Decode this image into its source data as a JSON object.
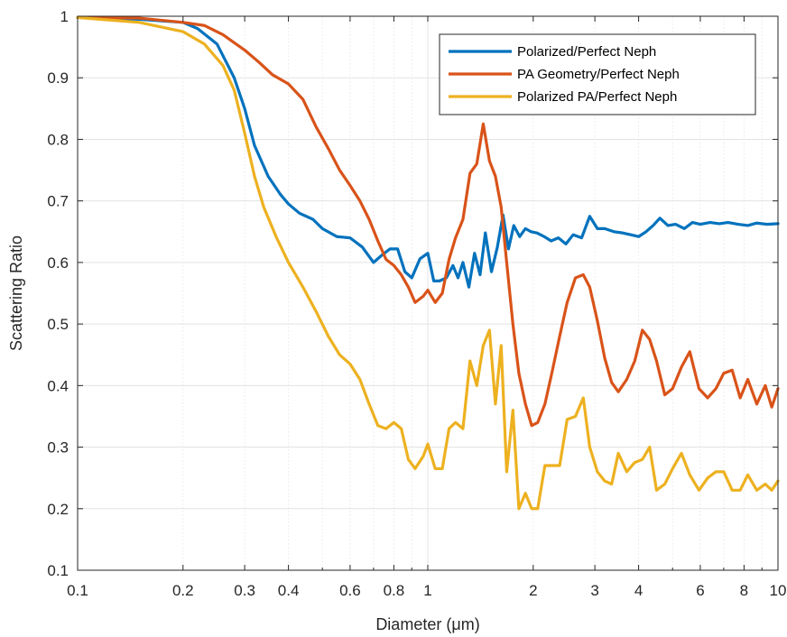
{
  "chart_data": {
    "type": "line",
    "title": "",
    "xlabel": "Diameter (μm)",
    "ylabel": "Scattering Ratio",
    "xscale": "log",
    "xlim": [
      0.1,
      10
    ],
    "ylim": [
      0.1,
      1
    ],
    "grid": true,
    "legend_position": "top-right",
    "x_ticks": [
      0.1,
      0.2,
      0.3,
      0.4,
      0.6,
      0.8,
      1,
      2,
      3,
      4,
      6,
      8,
      10
    ],
    "x_tick_labels": [
      "0.1",
      "0.2",
      "0.3",
      "0.4",
      "0.6",
      "0.8",
      "1",
      "2",
      "3",
      "4",
      "6",
      "8",
      "10"
    ],
    "y_ticks": [
      0.1,
      0.2,
      0.3,
      0.4,
      0.5,
      0.6,
      0.7,
      0.8,
      0.9,
      1
    ],
    "y_tick_labels": [
      "0.1",
      "0.2",
      "0.3",
      "0.4",
      "0.5",
      "0.6",
      "0.7",
      "0.8",
      "0.9",
      "1"
    ],
    "series": [
      {
        "name": "Polarized/Perfect Neph",
        "color": "#0072BD",
        "x": [
          0.1,
          0.15,
          0.2,
          0.22,
          0.25,
          0.28,
          0.3,
          0.32,
          0.35,
          0.38,
          0.4,
          0.43,
          0.47,
          0.5,
          0.55,
          0.6,
          0.65,
          0.7,
          0.74,
          0.78,
          0.82,
          0.86,
          0.9,
          0.95,
          1.0,
          1.04,
          1.08,
          1.13,
          1.18,
          1.22,
          1.26,
          1.31,
          1.36,
          1.41,
          1.46,
          1.52,
          1.58,
          1.64,
          1.7,
          1.76,
          1.83,
          1.9,
          1.97,
          2.05,
          2.15,
          2.25,
          2.36,
          2.48,
          2.6,
          2.75,
          2.9,
          3.05,
          3.2,
          3.4,
          3.6,
          3.8,
          4.0,
          4.2,
          4.4,
          4.6,
          4.85,
          5.1,
          5.4,
          5.7,
          6.0,
          6.4,
          6.8,
          7.2,
          7.7,
          8.2,
          8.7,
          9.3,
          10.0
        ],
        "values": [
          0.998,
          0.995,
          0.99,
          0.98,
          0.955,
          0.9,
          0.85,
          0.79,
          0.74,
          0.71,
          0.695,
          0.68,
          0.67,
          0.655,
          0.642,
          0.64,
          0.625,
          0.6,
          0.612,
          0.622,
          0.622,
          0.585,
          0.575,
          0.606,
          0.615,
          0.57,
          0.57,
          0.575,
          0.595,
          0.575,
          0.6,
          0.56,
          0.615,
          0.58,
          0.648,
          0.585,
          0.625,
          0.677,
          0.622,
          0.66,
          0.642,
          0.655,
          0.65,
          0.648,
          0.642,
          0.635,
          0.64,
          0.63,
          0.645,
          0.64,
          0.675,
          0.655,
          0.655,
          0.65,
          0.648,
          0.645,
          0.642,
          0.65,
          0.66,
          0.672,
          0.66,
          0.662,
          0.655,
          0.665,
          0.662,
          0.665,
          0.663,
          0.665,
          0.662,
          0.66,
          0.664,
          0.662,
          0.663
        ]
      },
      {
        "name": "PA Geometry/Perfect Neph",
        "color": "#D95319",
        "x": [
          0.1,
          0.15,
          0.2,
          0.23,
          0.26,
          0.3,
          0.33,
          0.36,
          0.4,
          0.44,
          0.48,
          0.52,
          0.56,
          0.6,
          0.64,
          0.68,
          0.72,
          0.76,
          0.8,
          0.84,
          0.88,
          0.92,
          0.97,
          1.0,
          1.05,
          1.1,
          1.15,
          1.2,
          1.26,
          1.32,
          1.38,
          1.44,
          1.5,
          1.56,
          1.62,
          1.68,
          1.75,
          1.82,
          1.9,
          1.98,
          2.06,
          2.16,
          2.26,
          2.38,
          2.5,
          2.64,
          2.78,
          2.9,
          3.05,
          3.2,
          3.35,
          3.5,
          3.7,
          3.9,
          4.1,
          4.3,
          4.5,
          4.75,
          5.0,
          5.3,
          5.6,
          5.95,
          6.3,
          6.65,
          7.0,
          7.4,
          7.8,
          8.2,
          8.7,
          9.2,
          9.6,
          10.0
        ],
        "values": [
          0.998,
          0.997,
          0.99,
          0.985,
          0.97,
          0.945,
          0.925,
          0.905,
          0.89,
          0.865,
          0.82,
          0.785,
          0.75,
          0.725,
          0.7,
          0.67,
          0.635,
          0.605,
          0.595,
          0.58,
          0.56,
          0.535,
          0.545,
          0.555,
          0.535,
          0.55,
          0.605,
          0.64,
          0.67,
          0.745,
          0.76,
          0.825,
          0.765,
          0.74,
          0.69,
          0.6,
          0.5,
          0.42,
          0.37,
          0.335,
          0.34,
          0.37,
          0.42,
          0.48,
          0.535,
          0.575,
          0.58,
          0.56,
          0.505,
          0.445,
          0.405,
          0.39,
          0.41,
          0.44,
          0.49,
          0.475,
          0.44,
          0.385,
          0.395,
          0.43,
          0.455,
          0.395,
          0.38,
          0.395,
          0.42,
          0.425,
          0.38,
          0.41,
          0.37,
          0.4,
          0.365,
          0.395
        ]
      },
      {
        "name": "Polarized PA/Perfect Neph",
        "color": "#EDB120",
        "x": [
          0.1,
          0.15,
          0.2,
          0.23,
          0.26,
          0.28,
          0.3,
          0.32,
          0.34,
          0.37,
          0.4,
          0.44,
          0.48,
          0.52,
          0.56,
          0.6,
          0.64,
          0.68,
          0.72,
          0.76,
          0.8,
          0.84,
          0.88,
          0.92,
          0.97,
          1.0,
          1.05,
          1.1,
          1.15,
          1.2,
          1.26,
          1.32,
          1.38,
          1.44,
          1.5,
          1.56,
          1.62,
          1.68,
          1.75,
          1.82,
          1.9,
          1.98,
          2.06,
          2.16,
          2.26,
          2.38,
          2.5,
          2.64,
          2.78,
          2.9,
          3.05,
          3.2,
          3.35,
          3.5,
          3.7,
          3.9,
          4.1,
          4.3,
          4.5,
          4.75,
          5.0,
          5.3,
          5.6,
          5.95,
          6.3,
          6.65,
          7.0,
          7.4,
          7.8,
          8.2,
          8.7,
          9.2,
          9.6,
          10.0
        ],
        "values": [
          0.998,
          0.99,
          0.975,
          0.955,
          0.92,
          0.88,
          0.81,
          0.74,
          0.69,
          0.64,
          0.6,
          0.56,
          0.52,
          0.48,
          0.45,
          0.435,
          0.41,
          0.37,
          0.335,
          0.33,
          0.34,
          0.33,
          0.28,
          0.265,
          0.285,
          0.305,
          0.265,
          0.265,
          0.33,
          0.34,
          0.33,
          0.44,
          0.4,
          0.465,
          0.49,
          0.37,
          0.465,
          0.26,
          0.36,
          0.2,
          0.225,
          0.2,
          0.2,
          0.27,
          0.27,
          0.27,
          0.345,
          0.35,
          0.38,
          0.3,
          0.26,
          0.245,
          0.24,
          0.29,
          0.26,
          0.275,
          0.28,
          0.3,
          0.23,
          0.24,
          0.265,
          0.29,
          0.255,
          0.23,
          0.25,
          0.26,
          0.26,
          0.23,
          0.23,
          0.255,
          0.23,
          0.24,
          0.23,
          0.245
        ]
      }
    ]
  }
}
